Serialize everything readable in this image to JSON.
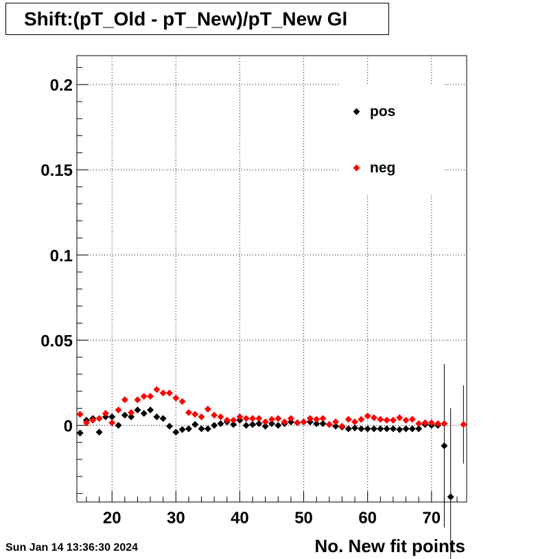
{
  "title": "Shift:(pT_Old - pT_New)/pT_New Gl",
  "datestamp": "Sun Jan 14 13:36:30 2024",
  "chart_data": {
    "type": "scatter",
    "title": "Shift:(pT_Old - pT_New)/pT_New Gl",
    "xlabel": "No. New fit points",
    "ylabel": "",
    "xlim": [
      14.5,
      75.5
    ],
    "ylim": [
      -0.045,
      0.217
    ],
    "x_ticks": [
      20,
      30,
      40,
      50,
      60,
      70
    ],
    "x_tick_labels": [
      "20",
      "30",
      "40",
      "50",
      "60",
      "70"
    ],
    "y_ticks": [
      0,
      0.05,
      0.1,
      0.15,
      0.2
    ],
    "y_tick_labels": [
      "0",
      "0.05",
      "0.1",
      "0.15",
      "0.2"
    ],
    "grid": true,
    "legend_position": "top-right",
    "series": [
      {
        "name": "pos",
        "color": "#000000",
        "points": [
          [
            15,
            -0.0045
          ],
          [
            16,
            0.003
          ],
          [
            17,
            0.004
          ],
          [
            18,
            -0.004
          ],
          [
            19,
            0.005
          ],
          [
            20,
            0.005
          ],
          [
            21,
            0.0
          ],
          [
            22,
            0.006
          ],
          [
            23,
            0.005
          ],
          [
            24,
            0.009
          ],
          [
            25,
            0.007
          ],
          [
            26,
            0.009
          ],
          [
            27,
            0.005
          ],
          [
            28,
            0.004
          ],
          [
            29,
            -0.0005
          ],
          [
            30,
            -0.004
          ],
          [
            31,
            -0.0025
          ],
          [
            32,
            -0.002
          ],
          [
            33,
            0.0005
          ],
          [
            34,
            -0.002
          ],
          [
            35,
            -0.002
          ],
          [
            36,
            0.0
          ],
          [
            37,
            0.001
          ],
          [
            38,
            0.002
          ],
          [
            39,
            0.0005
          ],
          [
            40,
            0.003
          ],
          [
            41,
            0.0
          ],
          [
            42,
            0.0005
          ],
          [
            43,
            0.001
          ],
          [
            44,
            -0.0005
          ],
          [
            45,
            0.001
          ],
          [
            46,
            0.0
          ],
          [
            47,
            0.001
          ],
          [
            48,
            0.002
          ],
          [
            49,
            0.0015
          ],
          [
            50,
            0.002
          ],
          [
            51,
            0.002
          ],
          [
            52,
            0.001
          ],
          [
            53,
            0.001
          ],
          [
            54,
            0.0005
          ],
          [
            55,
            -0.0005
          ],
          [
            56,
            -0.001
          ],
          [
            57,
            -0.002
          ],
          [
            58,
            -0.0015
          ],
          [
            59,
            -0.002
          ],
          [
            60,
            -0.002
          ],
          [
            61,
            -0.002
          ],
          [
            62,
            -0.002
          ],
          [
            63,
            -0.002
          ],
          [
            64,
            -0.002
          ],
          [
            65,
            -0.0025
          ],
          [
            66,
            -0.002
          ],
          [
            67,
            -0.002
          ],
          [
            68,
            -0.002
          ],
          [
            69,
            0.0005
          ],
          [
            70,
            0.0
          ],
          [
            71,
            0.0
          ],
          [
            72,
            -0.012
          ],
          [
            73,
            -0.042
          ]
        ],
        "errors": [
          [
            72,
            0.048
          ],
          [
            73,
            0.052
          ]
        ]
      },
      {
        "name": "neg",
        "color": "#ff0000",
        "points": [
          [
            15,
            0.0065
          ],
          [
            16,
            0.0015
          ],
          [
            17,
            0.003
          ],
          [
            18,
            0.004
          ],
          [
            19,
            0.007
          ],
          [
            20,
            0.0015
          ],
          [
            21,
            0.009
          ],
          [
            22,
            0.015
          ],
          [
            23,
            0.0075
          ],
          [
            24,
            0.015
          ],
          [
            25,
            0.017
          ],
          [
            26,
            0.017
          ],
          [
            27,
            0.021
          ],
          [
            28,
            0.019
          ],
          [
            29,
            0.019
          ],
          [
            30,
            0.016
          ],
          [
            31,
            0.014
          ],
          [
            32,
            0.0075
          ],
          [
            33,
            0.0065
          ],
          [
            34,
            0.005
          ],
          [
            35,
            0.0095
          ],
          [
            36,
            0.006
          ],
          [
            37,
            0.005
          ],
          [
            38,
            0.003
          ],
          [
            39,
            0.003
          ],
          [
            40,
            0.005
          ],
          [
            41,
            0.004
          ],
          [
            42,
            0.004
          ],
          [
            43,
            0.004
          ],
          [
            44,
            0.002
          ],
          [
            45,
            0.0035
          ],
          [
            46,
            0.004
          ],
          [
            47,
            0.002
          ],
          [
            48,
            0.004
          ],
          [
            49,
            0.0015
          ],
          [
            50,
            0.002
          ],
          [
            51,
            0.004
          ],
          [
            52,
            0.0035
          ],
          [
            53,
            0.004
          ],
          [
            54,
            0.0005
          ],
          [
            55,
            0.002
          ],
          [
            56,
            -0.0005
          ],
          [
            57,
            0.0035
          ],
          [
            58,
            0.002
          ],
          [
            59,
            0.0035
          ],
          [
            60,
            0.0055
          ],
          [
            61,
            0.0045
          ],
          [
            62,
            0.0035
          ],
          [
            63,
            0.003
          ],
          [
            64,
            0.003
          ],
          [
            65,
            0.0045
          ],
          [
            66,
            0.003
          ],
          [
            67,
            0.0035
          ],
          [
            68,
            0.001
          ],
          [
            69,
            0.0015
          ],
          [
            70,
            0.0015
          ],
          [
            71,
            0.001
          ],
          [
            72,
            0.001
          ],
          [
            75,
            0.0005
          ]
        ],
        "errors": [
          [
            75,
            0.023
          ]
        ]
      }
    ]
  }
}
